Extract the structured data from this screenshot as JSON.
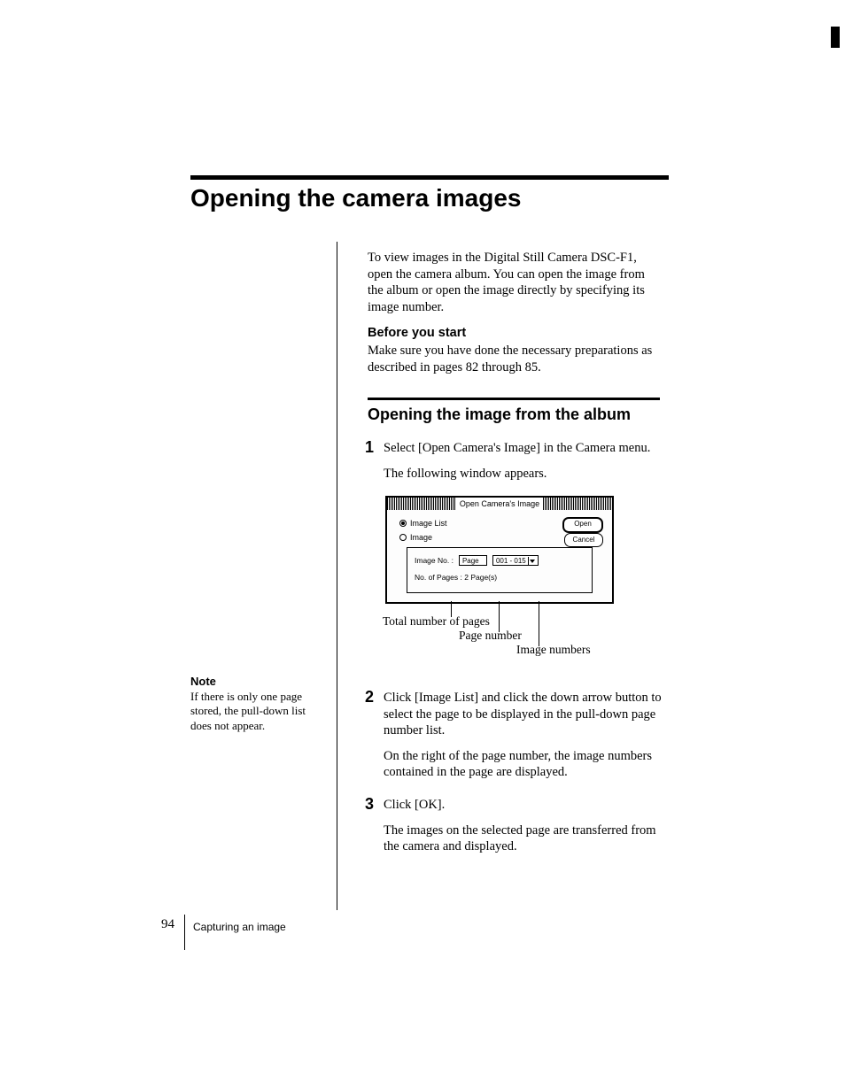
{
  "title": "Opening the camera images",
  "intro": "To view images in the Digital Still Camera DSC-F1, open the camera album.  You can open the image from the album or open the image directly by specifying its image number.",
  "before": {
    "heading": "Before you start",
    "body": "Make sure you have done the necessary preparations as described in pages 82 through 85."
  },
  "subheading": "Opening the image from the album",
  "steps": {
    "s1": {
      "num": "1",
      "p1": "Select [Open Camera's Image] in the Camera menu.",
      "p2": "The following window appears."
    },
    "s2": {
      "num": "2",
      "p1": "Click [Image List] and click the down arrow button to select the page to be displayed in the pull-down page number list.",
      "p2": "On the right of the page number, the image numbers contained in the page are displayed."
    },
    "s3": {
      "num": "3",
      "p1": "Click [OK].",
      "p2": "The images on the selected page are transferred from the camera and displayed."
    }
  },
  "dialog": {
    "title": "Open Camera's Image",
    "radio_imagelist": "Image List",
    "radio_image": "Image",
    "btn_open": "Open",
    "btn_cancel": "Cancel",
    "label_imageno": "Image No. :",
    "field_page": "Page",
    "field_range": "001 - 015",
    "label_pages": "No. of Pages : 2 Page(s)"
  },
  "callouts": {
    "total": "Total number of pages",
    "pagenum": "Page number",
    "imgnums": "Image numbers"
  },
  "note": {
    "heading": "Note",
    "body": "If there is only one page stored, the pull-down list does not appear."
  },
  "footer": {
    "pagenum": "94",
    "section": "Capturing an image"
  }
}
